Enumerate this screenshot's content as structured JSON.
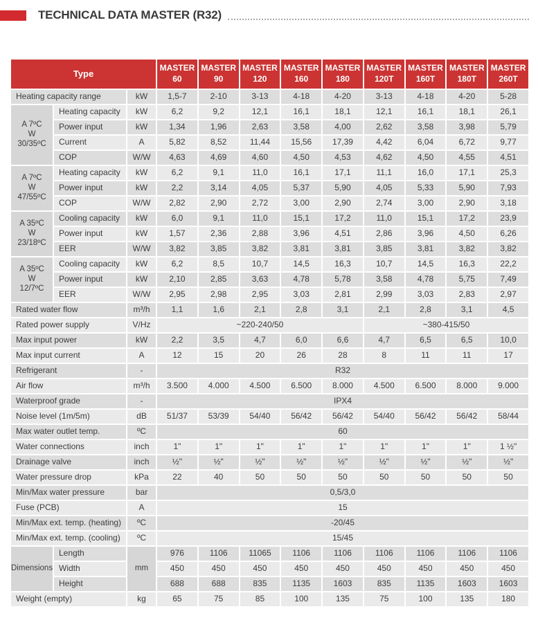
{
  "title": "TECHNICAL DATA MASTER (R32)",
  "colors": {
    "accent_red": "#D22A2E",
    "header_red": "#CB3433",
    "row_light": "#EAEAEA",
    "row_dark": "#DDDDDD",
    "group_gray": "#D6D6D6",
    "text": "#3C3C3C",
    "dotted_line": "#A9A9A9"
  },
  "table": {
    "type_label": "Type",
    "models": [
      "MASTER 60",
      "MASTER 90",
      "MASTER 120",
      "MASTER 160",
      "MASTER 180",
      "MASTER 120T",
      "MASTER 160T",
      "MASTER 180T",
      "MASTER 260T"
    ],
    "rows": [
      {
        "label": "Heating capacity range",
        "unit": "kW",
        "values": [
          "1,5-7",
          "2-10",
          "3-13",
          "4-18",
          "4-20",
          "3-13",
          "4-18",
          "4-20",
          "5-28"
        ]
      },
      {
        "group": {
          "lines": [
            "A 7ºC",
            "W",
            "30/35ºC"
          ],
          "rowspan": 4
        },
        "label": "Heating capacity",
        "unit": "kW",
        "values": [
          "6,2",
          "9,2",
          "12,1",
          "16,1",
          "18,1",
          "12,1",
          "16,1",
          "18,1",
          "26,1"
        ]
      },
      {
        "in_group": true,
        "label": "Power input",
        "unit": "kW",
        "values": [
          "1,34",
          "1,96",
          "2,63",
          "3,58",
          "4,00",
          "2,62",
          "3,58",
          "3,98",
          "5,79"
        ]
      },
      {
        "in_group": true,
        "label": "Current",
        "unit": "A",
        "values": [
          "5,82",
          "8,52",
          "11,44",
          "15,56",
          "17,39",
          "4,42",
          "6,04",
          "6,72",
          "9,77"
        ]
      },
      {
        "in_group": true,
        "label": "COP",
        "unit": "W/W",
        "values": [
          "4,63",
          "4,69",
          "4,60",
          "4,50",
          "4,53",
          "4,62",
          "4,50",
          "4,55",
          "4,51"
        ]
      },
      {
        "group": {
          "lines": [
            "A 7ºC",
            "W",
            "47/55ºC"
          ],
          "rowspan": 3
        },
        "label": "Heating capacity",
        "unit": "kW",
        "values": [
          "6,2",
          "9,1",
          "11,0",
          "16,1",
          "17,1",
          "11,1",
          "16,0",
          "17,1",
          "25,3"
        ]
      },
      {
        "in_group": true,
        "label": "Power input",
        "unit": "kW",
        "values": [
          "2,2",
          "3,14",
          "4,05",
          "5,37",
          "5,90",
          "4,05",
          "5,33",
          "5,90",
          "7,93"
        ]
      },
      {
        "in_group": true,
        "label": "COP",
        "unit": "W/W",
        "values": [
          "2,82",
          "2,90",
          "2,72",
          "3,00",
          "2,90",
          "2,74",
          "3,00",
          "2,90",
          "3,18"
        ]
      },
      {
        "group": {
          "lines": [
            "A 35ºC",
            "W",
            "23/18ºC"
          ],
          "rowspan": 3
        },
        "label": "Cooling capacity",
        "unit": "kW",
        "values": [
          "6,0",
          "9,1",
          "11,0",
          "15,1",
          "17,2",
          "11,0",
          "15,1",
          "17,2",
          "23,9"
        ]
      },
      {
        "in_group": true,
        "label": "Power input",
        "unit": "kW",
        "values": [
          "1,57",
          "2,36",
          "2,88",
          "3,96",
          "4,51",
          "2,86",
          "3,96",
          "4,50",
          "6,26"
        ]
      },
      {
        "in_group": true,
        "label": "EER",
        "unit": "W/W",
        "values": [
          "3,82",
          "3,85",
          "3,82",
          "3,81",
          "3,81",
          "3,85",
          "3,81",
          "3,82",
          "3,82"
        ]
      },
      {
        "group": {
          "lines": [
            "A 35ºC",
            "W",
            "12/7ºC"
          ],
          "rowspan": 3
        },
        "label": "Cooling capacity",
        "unit": "kW",
        "values": [
          "6,2",
          "8,5",
          "10,7",
          "14,5",
          "16,3",
          "10,7",
          "14,5",
          "16,3",
          "22,2"
        ]
      },
      {
        "in_group": true,
        "label": "Power input",
        "unit": "kW",
        "values": [
          "2,10",
          "2,85",
          "3,63",
          "4,78",
          "5,78",
          "3,58",
          "4,78",
          "5,75",
          "7,49"
        ]
      },
      {
        "in_group": true,
        "label": "EER",
        "unit": "W/W",
        "values": [
          "2,95",
          "2,98",
          "2,95",
          "3,03",
          "2,81",
          "2,99",
          "3,03",
          "2,83",
          "2,97"
        ]
      },
      {
        "label": "Rated water flow",
        "unit": "m³/h",
        "values": [
          "1,1",
          "1,6",
          "2,1",
          "2,8",
          "3,1",
          "2,1",
          "2,8",
          "3,1",
          "4,5"
        ]
      },
      {
        "label": "Rated power supply",
        "unit": "V/Hz",
        "spans": [
          {
            "text": "~220-240/50",
            "cols": 5
          },
          {
            "text": "~380-415/50",
            "cols": 4
          }
        ]
      },
      {
        "label": "Max input power",
        "unit": "kW",
        "values": [
          "2,2",
          "3,5",
          "4,7",
          "6,0",
          "6,6",
          "4,7",
          "6,5",
          "6,5",
          "10,0"
        ]
      },
      {
        "label": "Max input current",
        "unit": "A",
        "values": [
          "12",
          "15",
          "20",
          "26",
          "28",
          "8",
          "11",
          "11",
          "17"
        ]
      },
      {
        "label": "Refrigerant",
        "unit": "-",
        "spans": [
          {
            "text": "R32",
            "cols": 9
          }
        ]
      },
      {
        "label": "Air flow",
        "unit": "m³/h",
        "values": [
          "3.500",
          "4.000",
          "4.500",
          "6.500",
          "8.000",
          "4.500",
          "6.500",
          "8.000",
          "9.000"
        ]
      },
      {
        "label": "Waterproof grade",
        "unit": "-",
        "spans": [
          {
            "text": "IPX4",
            "cols": 9
          }
        ]
      },
      {
        "label": "Noise level (1m/5m)",
        "unit": "dB",
        "values": [
          "51/37",
          "53/39",
          "54/40",
          "56/42",
          "56/42",
          "54/40",
          "56/42",
          "56/42",
          "58/44"
        ]
      },
      {
        "label": "Max water outlet temp.",
        "unit": "ºC",
        "spans": [
          {
            "text": "60",
            "cols": 9
          }
        ]
      },
      {
        "label": "Water connections",
        "unit": "inch",
        "values": [
          "1\"",
          "1\"",
          "1\"",
          "1\"",
          "1\"",
          "1\"",
          "1\"",
          "1\"",
          "1 ½\""
        ]
      },
      {
        "label": "Drainage valve",
        "unit": "inch",
        "values": [
          "½\"",
          "½\"",
          "½\"",
          "½\"",
          "½\"",
          "½\"",
          "½\"",
          "½\"",
          "½\""
        ]
      },
      {
        "label": "Water pressure drop",
        "unit": "kPa",
        "values": [
          "22",
          "40",
          "50",
          "50",
          "50",
          "50",
          "50",
          "50",
          "50"
        ]
      },
      {
        "label": "Min/Max water pressure",
        "unit": "bar",
        "spans": [
          {
            "text": "0,5/3,0",
            "cols": 9
          }
        ]
      },
      {
        "label": "Fuse (PCB)",
        "unit": "A",
        "spans": [
          {
            "text": "15",
            "cols": 9
          }
        ]
      },
      {
        "label": "Min/Max ext. temp. (heating)",
        "unit": "ºC",
        "spans": [
          {
            "text": "-20/45",
            "cols": 9
          }
        ]
      },
      {
        "label": "Min/Max ext. temp. (cooling)",
        "unit": "ºC",
        "spans": [
          {
            "text": "15/45",
            "cols": 9
          }
        ]
      },
      {
        "group": {
          "lines": [
            "Dimensions"
          ],
          "rowspan": 3
        },
        "label": "Length",
        "unit": "mm",
        "unit_rowspan": 3,
        "values": [
          "976",
          "1106",
          "11065",
          "1106",
          "1106",
          "1106",
          "1106",
          "1106",
          "1106"
        ]
      },
      {
        "in_group": true,
        "skip_unit": true,
        "label": "Width",
        "values": [
          "450",
          "450",
          "450",
          "450",
          "450",
          "450",
          "450",
          "450",
          "450"
        ]
      },
      {
        "in_group": true,
        "skip_unit": true,
        "label": "Height",
        "values": [
          "688",
          "688",
          "835",
          "1135",
          "1603",
          "835",
          "1135",
          "1603",
          "1603"
        ]
      },
      {
        "label": "Weight (empty)",
        "unit": "kg",
        "values": [
          "65",
          "75",
          "85",
          "100",
          "135",
          "75",
          "100",
          "135",
          "180"
        ]
      }
    ]
  }
}
